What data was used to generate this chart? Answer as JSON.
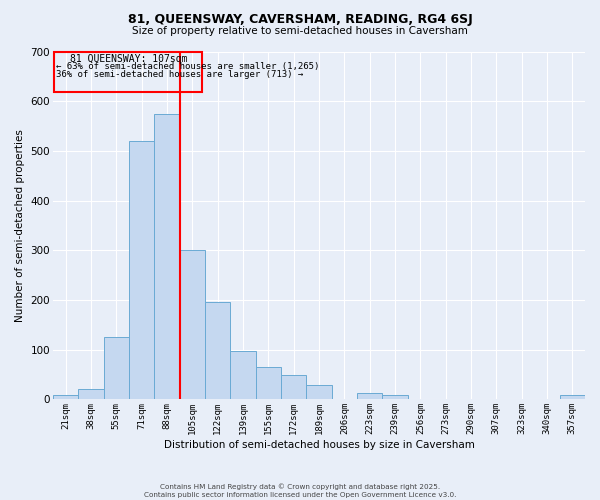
{
  "title": "81, QUEENSWAY, CAVERSHAM, READING, RG4 6SJ",
  "subtitle": "Size of property relative to semi-detached houses in Caversham",
  "xlabel": "Distribution of semi-detached houses by size in Caversham",
  "ylabel": "Number of semi-detached properties",
  "bar_labels": [
    "21sqm",
    "38sqm",
    "55sqm",
    "71sqm",
    "88sqm",
    "105sqm",
    "122sqm",
    "139sqm",
    "155sqm",
    "172sqm",
    "189sqm",
    "206sqm",
    "223sqm",
    "239sqm",
    "256sqm",
    "273sqm",
    "290sqm",
    "307sqm",
    "323sqm",
    "340sqm",
    "357sqm"
  ],
  "bar_values": [
    8,
    20,
    125,
    520,
    575,
    300,
    195,
    98,
    65,
    50,
    30,
    0,
    12,
    8,
    0,
    0,
    0,
    0,
    0,
    0,
    8
  ],
  "bar_color": "#c5d8f0",
  "bar_edge_color": "#6aaad4",
  "vline_index": 5,
  "vline_color": "red",
  "property_label": "81 QUEENSWAY: 107sqm",
  "smaller_label": "← 63% of semi-detached houses are smaller (1,265)",
  "larger_label": "36% of semi-detached houses are larger (713) →",
  "annotation_box_color": "red",
  "ylim": [
    0,
    700
  ],
  "yticks": [
    0,
    100,
    200,
    300,
    400,
    500,
    600,
    700
  ],
  "bg_color": "#e8eef8",
  "grid_color": "#ffffff",
  "footer_line1": "Contains HM Land Registry data © Crown copyright and database right 2025.",
  "footer_line2": "Contains public sector information licensed under the Open Government Licence v3.0."
}
